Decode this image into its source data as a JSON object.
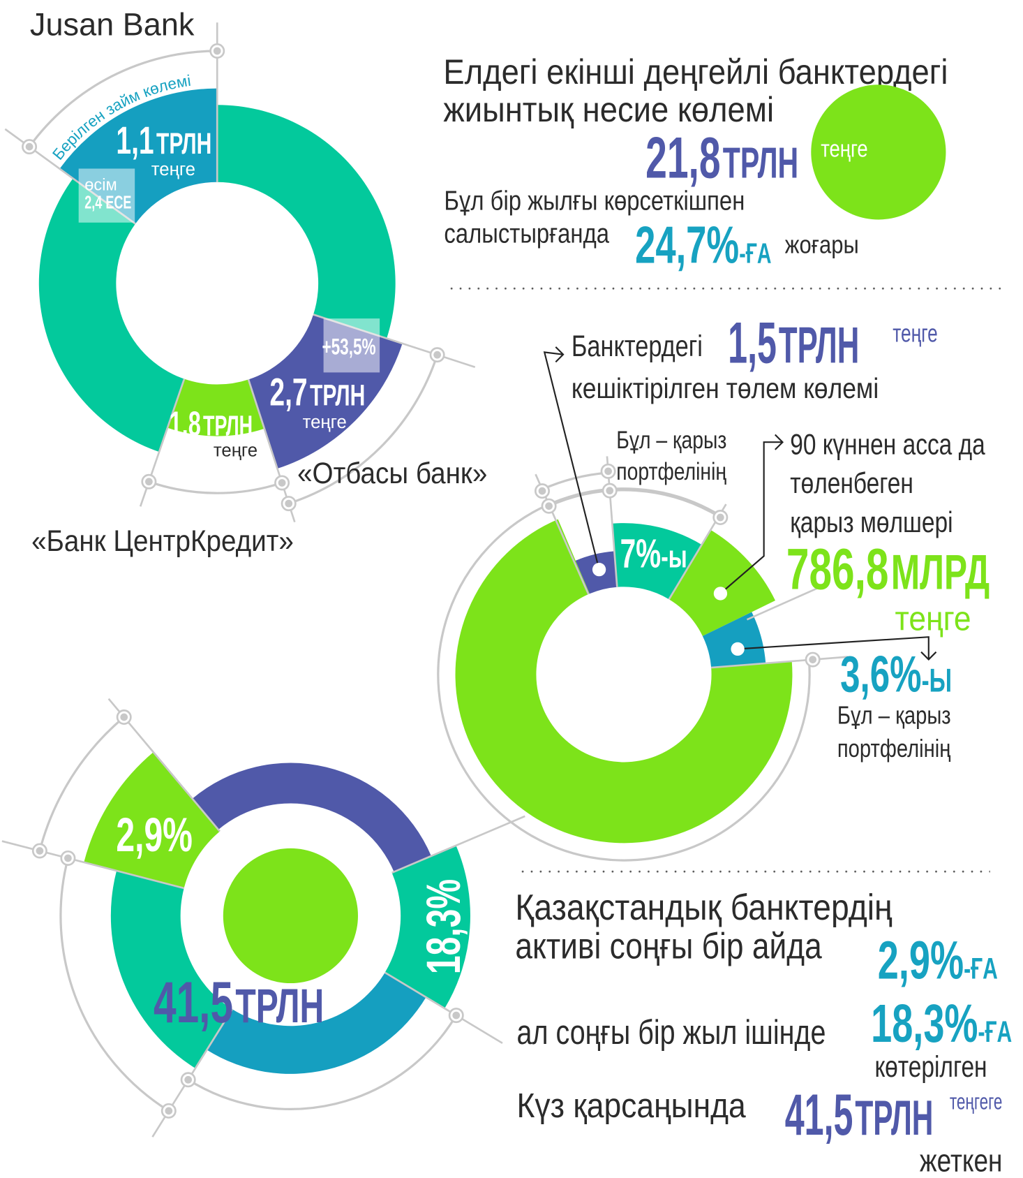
{
  "colors": {
    "teal": "#03C99C",
    "blue": "#159FC0",
    "purple": "#5059A9",
    "green": "#7DE31A",
    "cyan_text": "#17A2C1",
    "text": "#2b2b2b",
    "guide": "#c8c8c8"
  },
  "banks": {
    "jusan": {
      "name": "Jusan Bank",
      "arc_label": "Берілген займ көлемі",
      "value": "1,1",
      "unit": "ТРЛН",
      "currency": "теңге",
      "growth_label": "өсім",
      "growth_value": "2,4 ЕСЕ"
    },
    "otbasy": {
      "name": "«Отбасы банк»",
      "value": "2,7",
      "unit": "ТРЛН",
      "currency": "теңге",
      "growth": "+53,5%"
    },
    "bcc": {
      "name": "«Банк ЦентрКредит»",
      "value": "1,8",
      "unit": "ТРЛН",
      "currency": "теңге"
    }
  },
  "total_loans": {
    "title_line1": "Елдегі екінші деңгейлі банктердегі",
    "title_line2": "жиынтық несие көлемі",
    "value": "21,8",
    "unit": "ТРЛН",
    "currency": "теңге",
    "compare_line1": "Бұл бір жылғы көрсеткішпен",
    "compare_line2": "салыстырғанда",
    "growth": "24,7%",
    "growth_suffix": "-ҒА",
    "growth_word": "жоғары"
  },
  "overdue": {
    "prefix": "Банктердегі",
    "value": "1,5",
    "unit": "ТРЛН",
    "currency": "теңге",
    "line2": "кешіктірілген төлем көлемі",
    "share_note_line1": "Бұл – қарыз",
    "share_note_line2": "портфелінің",
    "share_value": "7%",
    "share_suffix": "-ы",
    "over90_line1": "90 күннен асса да",
    "over90_line2": "төленбеген",
    "over90_line3": "қарыз мөлшері",
    "over90_value": "786,8",
    "over90_unit": "МЛРД",
    "over90_currency": "теңге",
    "over90_share": "3,6%",
    "over90_share_suffix": "-Ы",
    "over90_note_line1": "Бұл – қарыз",
    "over90_note_line2": "портфелінің"
  },
  "assets": {
    "line1": "Қазақстандық банктердің",
    "line2": "активі соңғы бір айда",
    "month_growth": "2,9%",
    "month_suffix": "-ҒА",
    "line3": "ал соңғы бір жыл ішінде",
    "year_growth": "18,3%",
    "year_suffix": "-ҒА",
    "year_word": "көтерілген",
    "line4": "Күз қарсаңында",
    "total": "41,5",
    "total_unit": "ТРЛН",
    "total_currency": "теңгеге",
    "total_word": "жеткен",
    "donut_month": "2,9%",
    "donut_year": "18,3%",
    "donut_total": "41,5",
    "donut_total_unit": "ТРЛН"
  }
}
